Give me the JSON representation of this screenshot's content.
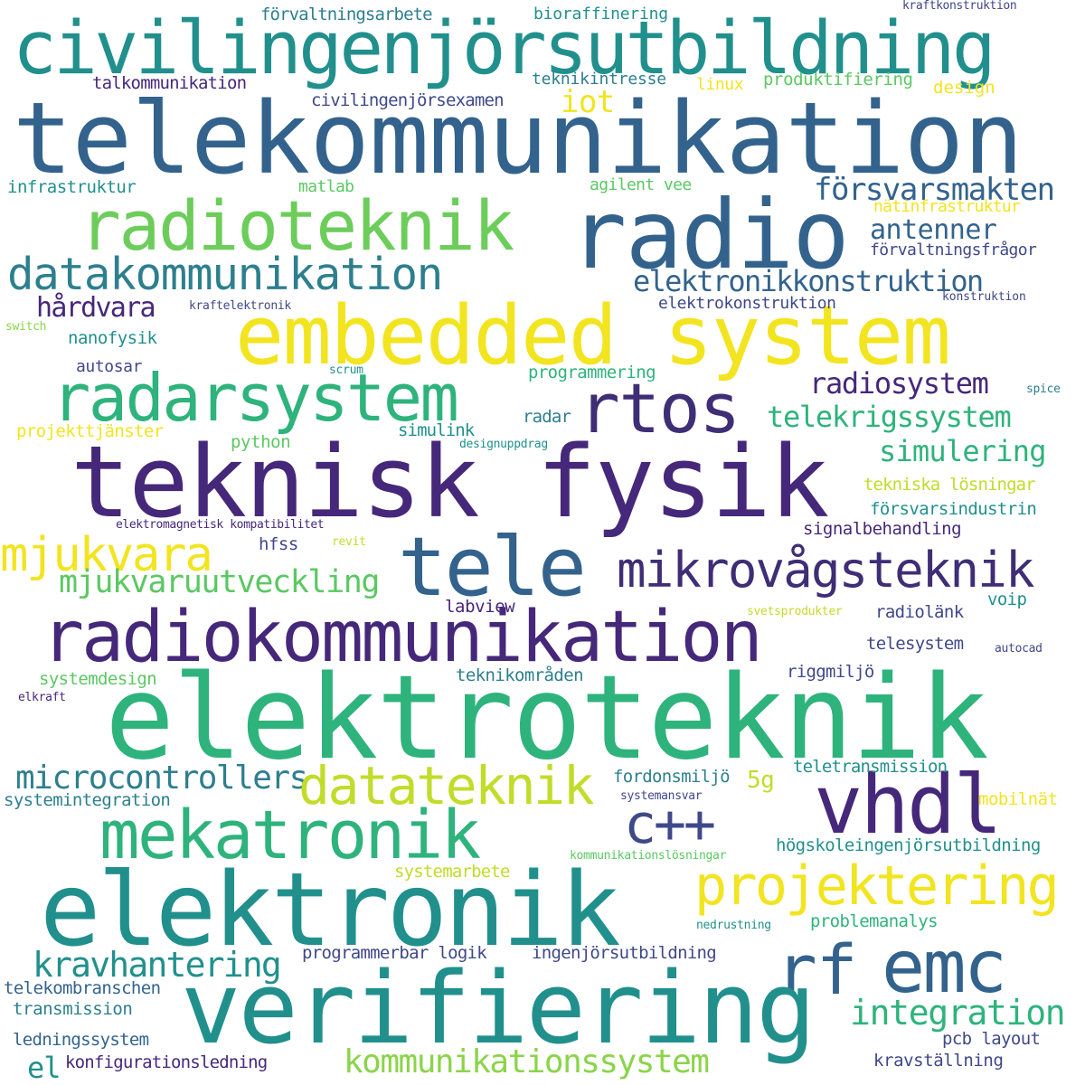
{
  "palette": {
    "yellow": "#f2e41f",
    "yellow_green": "#c2dc2a",
    "light_green": "#8bd44a",
    "green": "#5bc863",
    "teal_green": "#2eb37c",
    "teal": "#21908d",
    "teal_blue": "#2d7f8e",
    "blue": "#33638d",
    "indigo": "#3f4889",
    "purple": "#46287a",
    "dark_purple": "#440154"
  },
  "words": [
    {
      "id": "civilingenjorsutbildning",
      "text": "civilingenjörsutbildning",
      "color": "#21908d"
    },
    {
      "id": "telekommunikation",
      "text": "telekommunikation",
      "color": "#33638d"
    },
    {
      "id": "radioteknik",
      "text": "radioteknik",
      "color": "#6ccd5a"
    },
    {
      "id": "radio",
      "text": "radio",
      "color": "#33638d"
    },
    {
      "id": "forsvarsmakten",
      "text": "försvarsmakten",
      "color": "#33638d"
    },
    {
      "id": "datakommunikation",
      "text": "datakommunikation",
      "color": "#2d7f8e"
    },
    {
      "id": "antenner",
      "text": "antenner",
      "color": "#33638d"
    },
    {
      "id": "elektronikkonstruktion",
      "text": "elektronikkonstruktion",
      "color": "#33638d"
    },
    {
      "id": "embedded-system",
      "text": "embedded system",
      "color": "#f2e41f"
    },
    {
      "id": "hardvara",
      "text": "hårdvara",
      "color": "#46287a"
    },
    {
      "id": "radarsystem",
      "text": "radarsystem",
      "color": "#2eb37c"
    },
    {
      "id": "rtos",
      "text": "rtos",
      "color": "#3f2d76"
    },
    {
      "id": "radiosystem",
      "text": "radiosystem",
      "color": "#46287a"
    },
    {
      "id": "telekrigssystem",
      "text": "telekrigssystem",
      "color": "#2eb37c"
    },
    {
      "id": "teknisk-fysik",
      "text": "teknisk fysik",
      "color": "#46287a"
    },
    {
      "id": "simulering",
      "text": "simulering",
      "color": "#2eb37c"
    },
    {
      "id": "mjukvara",
      "text": "mjukvara",
      "color": "#f2e41f"
    },
    {
      "id": "tele",
      "text": "tele",
      "color": "#33638d"
    },
    {
      "id": "mikrovagsteknik",
      "text": "mikrovågsteknik",
      "color": "#3f2d76"
    },
    {
      "id": "mjukvaruutveckling",
      "text": "mjukvaruutveckling",
      "color": "#5bc863"
    },
    {
      "id": "radiokommunikation",
      "text": "radiokommunikation",
      "color": "#46287a"
    },
    {
      "id": "elektroteknik",
      "text": "elektroteknik",
      "color": "#2eb37c"
    },
    {
      "id": "microcontrollers",
      "text": "microcontrollers",
      "color": "#2d7f8e"
    },
    {
      "id": "datateknik",
      "text": "datateknik",
      "color": "#c2dc2a"
    },
    {
      "id": "vhdl",
      "text": "vhdl",
      "color": "#46287a"
    },
    {
      "id": "mekatronik",
      "text": "mekatronik",
      "color": "#2eb37c"
    },
    {
      "id": "cpp",
      "text": "c++",
      "color": "#3f4889"
    },
    {
      "id": "projektering",
      "text": "projektering",
      "color": "#f2e41f"
    },
    {
      "id": "elektronik",
      "text": "elektronik",
      "color": "#21908d"
    },
    {
      "id": "rf",
      "text": "rf",
      "color": "#33638d"
    },
    {
      "id": "emc",
      "text": "emc",
      "color": "#33638d"
    },
    {
      "id": "verifiering",
      "text": "verifiering",
      "color": "#21908d"
    },
    {
      "id": "kravhantering",
      "text": "kravhantering",
      "color": "#21908d"
    },
    {
      "id": "integration",
      "text": "integration",
      "color": "#2eb37c"
    },
    {
      "id": "kommunikationssystem",
      "text": "kommunikationssystem",
      "color": "#8bd44a"
    },
    {
      "id": "el",
      "text": "el",
      "color": "#21908d"
    },
    {
      "id": "forvaltningsarbete",
      "text": "förvaltningsarbete",
      "color": "#2d7f8e"
    },
    {
      "id": "bioraffinering",
      "text": "bioraffinering",
      "color": "#21908d"
    },
    {
      "id": "kraftkonstruktion",
      "text": "kraftkonstruktion",
      "color": "#3f4889"
    },
    {
      "id": "teknikintresse",
      "text": "teknikintresse",
      "color": "#2d7f8e"
    },
    {
      "id": "talkommunikation",
      "text": "talkommunikation",
      "color": "#46287a"
    },
    {
      "id": "linux",
      "text": "linux",
      "color": "#f2e41f"
    },
    {
      "id": "produktifiering",
      "text": "produktifiering",
      "color": "#5bc863"
    },
    {
      "id": "design",
      "text": "design",
      "color": "#f2e41f"
    },
    {
      "id": "civilingenjorsexamen",
      "text": "civilingenjörsexamen",
      "color": "#3f4889"
    },
    {
      "id": "iot",
      "text": "iot",
      "color": "#f2e41f"
    },
    {
      "id": "infrastruktur",
      "text": "infrastruktur",
      "color": "#21908d"
    },
    {
      "id": "matlab",
      "text": "matlab",
      "color": "#5bc863"
    },
    {
      "id": "agilent-vee",
      "text": "agilent vee",
      "color": "#5bc863"
    },
    {
      "id": "natinfrastruktur",
      "text": "nätinfrastruktur",
      "color": "#f2e41f"
    },
    {
      "id": "forvaltningsfragor",
      "text": "förvaltningsfrågor",
      "color": "#3f4889"
    },
    {
      "id": "kraftelektronik",
      "text": "kraftelektronik",
      "color": "#3f4889"
    },
    {
      "id": "elektrokonstruktion",
      "text": "elektrokonstruktion",
      "color": "#3f4889"
    },
    {
      "id": "konstruktion",
      "text": "konstruktion",
      "color": "#3f4889"
    },
    {
      "id": "switch",
      "text": "switch",
      "color": "#8bd44a"
    },
    {
      "id": "nanofysik",
      "text": "nanofysik",
      "color": "#21908d"
    },
    {
      "id": "autosar",
      "text": "autosar",
      "color": "#3f4889"
    },
    {
      "id": "scrum",
      "text": "scrum",
      "color": "#21908d"
    },
    {
      "id": "programmering",
      "text": "programmering",
      "color": "#2eb37c"
    },
    {
      "id": "spice",
      "text": "spice",
      "color": "#2d7f8e"
    },
    {
      "id": "projekttjanster",
      "text": "projekttjänster",
      "color": "#f2e41f"
    },
    {
      "id": "simulink",
      "text": "simulink",
      "color": "#21908d"
    },
    {
      "id": "radar",
      "text": "radar",
      "color": "#2d7f8e"
    },
    {
      "id": "python",
      "text": "python",
      "color": "#5bc863"
    },
    {
      "id": "designuppdrag",
      "text": "designuppdrag",
      "color": "#21908d"
    },
    {
      "id": "tekniska-losningar",
      "text": "tekniska lösningar",
      "color": "#c2dc2a"
    },
    {
      "id": "forsvarsindustrin",
      "text": "försvarsindustrin",
      "color": "#21908d"
    },
    {
      "id": "elektromagnetisk-kompatibilitet",
      "text": "elektromagnetisk kompatibilitet",
      "color": "#46287a"
    },
    {
      "id": "revit",
      "text": "revit",
      "color": "#c2dc2a"
    },
    {
      "id": "hfss",
      "text": "hfss",
      "color": "#3f4889"
    },
    {
      "id": "signalbehandling",
      "text": "signalbehandling",
      "color": "#46287a"
    },
    {
      "id": "labview",
      "text": "labview",
      "color": "#46287a"
    },
    {
      "id": "svetsprodukter",
      "text": "svetsprodukter",
      "color": "#c2dc2a"
    },
    {
      "id": "voip",
      "text": "voip",
      "color": "#21908d"
    },
    {
      "id": "radiolank",
      "text": "radiolänk",
      "color": "#3f4889"
    },
    {
      "id": "telesystem",
      "text": "telesystem",
      "color": "#3f4889"
    },
    {
      "id": "autocad",
      "text": "autocad",
      "color": "#3f4889"
    },
    {
      "id": "systemdesign",
      "text": "systemdesign",
      "color": "#5bc863"
    },
    {
      "id": "teknikomraden",
      "text": "teknikområden",
      "color": "#2d7f8e"
    },
    {
      "id": "riggmiljo",
      "text": "riggmiljö",
      "color": "#3f4889"
    },
    {
      "id": "elkraft",
      "text": "elkraft",
      "color": "#46287a"
    },
    {
      "id": "5g",
      "text": "5g",
      "color": "#c2dc2a"
    },
    {
      "id": "fordonsmiljo",
      "text": "fordonsmiljö",
      "color": "#2d7f8e"
    },
    {
      "id": "teletransmission",
      "text": "teletransmission",
      "color": "#21908d"
    },
    {
      "id": "systemintegration",
      "text": "systemintegration",
      "color": "#2d7f8e"
    },
    {
      "id": "systemansvar",
      "text": "systemansvar",
      "color": "#3f4889"
    },
    {
      "id": "mobilnat",
      "text": "mobilnät",
      "color": "#f2e41f"
    },
    {
      "id": "hogskoleingenjorsutbildning",
      "text": "högskoleingenjörsutbildning",
      "color": "#21908d"
    },
    {
      "id": "kommunikationslosningar",
      "text": "kommunikationslösningar",
      "color": "#5bc863"
    },
    {
      "id": "systemarbete",
      "text": "systemarbete",
      "color": "#c2dc2a"
    },
    {
      "id": "nedrustning",
      "text": "nedrustning",
      "color": "#21908d"
    },
    {
      "id": "problemanalys",
      "text": "problemanalys",
      "color": "#2eb37c"
    },
    {
      "id": "programmerbar-logik",
      "text": "programmerbar logik",
      "color": "#3f4889"
    },
    {
      "id": "ingenjorsutbildning",
      "text": "ingenjörsutbildning",
      "color": "#3f4889"
    },
    {
      "id": "telekombranschen",
      "text": "telekombranschen",
      "color": "#33638d"
    },
    {
      "id": "transmission",
      "text": "transmission",
      "color": "#2d7f8e"
    },
    {
      "id": "ledningssystem",
      "text": "ledningssystem",
      "color": "#33638d"
    },
    {
      "id": "pcb-layout",
      "text": "pcb layout",
      "color": "#3f4889"
    },
    {
      "id": "konfigurationsledning",
      "text": "konfigurationsledning",
      "color": "#46287a"
    },
    {
      "id": "kravstallning",
      "text": "kravställning",
      "color": "#3f4889"
    }
  ]
}
